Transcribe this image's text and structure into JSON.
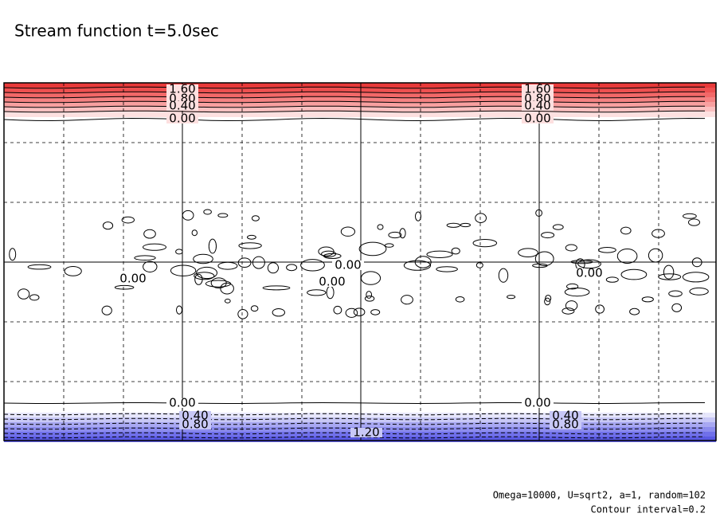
{
  "title": "Stream function t=5.0sec",
  "notes": [
    "Omega=10000, U=sqrt2, a=1, random=102",
    "Contour interval=0.2"
  ],
  "contour_labels": [
    "1.60",
    "0.80",
    "0.40",
    "0.00",
    "1.60",
    "0.80",
    "0.40",
    "0.00",
    "0.00",
    "0.00",
    "0.00",
    "0.00",
    "0.00",
    "0.00",
    "0.40",
    "0.40",
    "0.80",
    "0.80",
    "1.20"
  ]
}
